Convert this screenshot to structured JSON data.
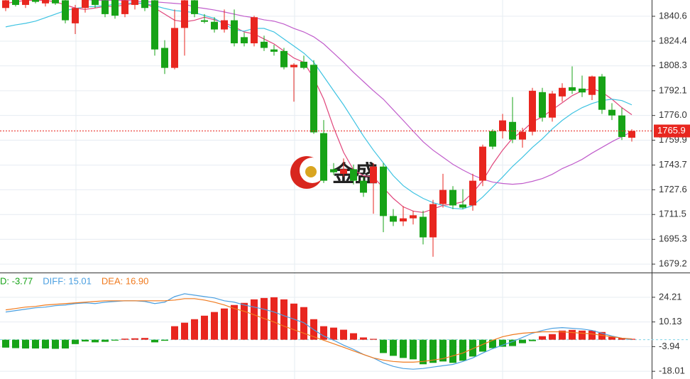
{
  "chart_data": [
    {
      "type": "candlestick",
      "watermark": "金盛",
      "ylim": [
        1673.7,
        1851.2
      ],
      "yticks": [
        1840.6,
        1824.4,
        1808.3,
        1792.1,
        {
          "value": 1776,
          "label": "1776.0"
        },
        1759.9,
        1743.7,
        1727.6,
        1711.5,
        1695.3,
        1679.2
      ],
      "grid": true,
      "up_color": "#e8261f",
      "down_color": "#17a317",
      "last_price": 1765.9,
      "open": [
        1846,
        1852,
        1848,
        1853,
        1849,
        1852,
        1851,
        1836,
        1846,
        1852,
        1851,
        1852,
        1842,
        1848,
        1852,
        1851,
        1820,
        1807,
        1833,
        1851,
        1838,
        1837,
        1832,
        1838,
        1827,
        1823,
        1824,
        1819,
        1818,
        1807.4,
        1811,
        1809,
        1764.5,
        1741,
        1738,
        1741,
        1733.5,
        1732,
        1742.7,
        1710.5,
        1707,
        1709,
        1710,
        1696.6,
        1718.3,
        1727.5,
        1718,
        1717.4,
        1733.5,
        1765.8,
        1765.8,
        1771.8,
        1760.3,
        1765.4,
        1791.2,
        1774.6,
        1788.4,
        1794.4,
        1793.5,
        1789.4,
        1801.4,
        1779.7,
        1776,
        1761.5
      ],
      "high": [
        1853,
        1854,
        1855,
        1856,
        1854,
        1855,
        1853,
        1848,
        1855,
        1856,
        1854,
        1855,
        1853,
        1855,
        1855,
        1853,
        1825,
        1845,
        1856,
        1854,
        1842,
        1840,
        1845,
        1845,
        1830,
        1841,
        1828,
        1822,
        1820,
        1810,
        1815,
        1812,
        1773,
        1745,
        1748,
        1744,
        1736,
        1745,
        1745,
        1715,
        1717,
        1714,
        1714,
        1721,
        1738,
        1730,
        1728,
        1738,
        1757,
        1767,
        1777,
        1788,
        1768,
        1794,
        1794,
        1792,
        1797,
        1808,
        1802,
        1802,
        1803,
        1784,
        1781,
        1767
      ],
      "low": [
        1844,
        1847,
        1846,
        1849,
        1847,
        1848,
        1836,
        1829,
        1843,
        1846,
        1840,
        1839,
        1840,
        1845,
        1844,
        1815,
        1803,
        1806,
        1815,
        1840,
        1836,
        1830,
        1830,
        1821,
        1821,
        1821,
        1818,
        1815,
        1806,
        1785,
        1806,
        1764,
        1732,
        1737,
        1736,
        1731,
        1723,
        1712,
        1700,
        1704,
        1704,
        1705,
        1692,
        1684,
        1716,
        1715,
        1715,
        1714,
        1730,
        1754,
        1761,
        1758,
        1755,
        1763,
        1772,
        1772,
        1785,
        1790,
        1788,
        1786,
        1777,
        1773,
        1760,
        1759
      ],
      "close": [
        1851,
        1848,
        1853,
        1850,
        1852,
        1849,
        1838,
        1846,
        1852,
        1848,
        1842,
        1841,
        1851,
        1852,
        1846,
        1819,
        1807,
        1833,
        1851,
        1842,
        1837,
        1832,
        1838,
        1823,
        1823,
        1840,
        1820,
        1817.5,
        1807.4,
        1809,
        1807,
        1765,
        1733.5,
        1739,
        1741,
        1733.5,
        1725.7,
        1742.7,
        1710.5,
        1706.8,
        1709,
        1711,
        1696.6,
        1718.3,
        1727.5,
        1717.4,
        1716,
        1733.5,
        1755.7,
        1755.7,
        1772.8,
        1760.3,
        1765.4,
        1792.1,
        1774.6,
        1790.3,
        1794,
        1792.1,
        1791,
        1801.4,
        1779.7,
        1776,
        1762,
        1765.9
      ],
      "lines": [
        {
          "color": "#e0457b",
          "values": [
            1849,
            1850,
            1851,
            1851,
            1851,
            1850,
            1848,
            1846,
            1845,
            1846,
            1847,
            1847,
            1848,
            1849,
            1849,
            1846,
            1842,
            1838,
            1837,
            1838,
            1840,
            1838.3,
            1836.4,
            1833.7,
            1830.4,
            1829.1,
            1825.8,
            1822.6,
            1818,
            1813.4,
            1810.6,
            1800.4,
            1786.6,
            1768.1,
            1752,
            1740.5,
            1736.8,
            1735.9,
            1728.9,
            1722,
            1716.5,
            1713.7,
            1712.8,
            1715.1,
            1717.4,
            1718.3,
            1719.7,
            1725.7,
            1733.5,
            1744.2,
            1753.4,
            1761.2,
            1765.8,
            1771.8,
            1775.1,
            1779.7,
            1784.3,
            1788.9,
            1792.1,
            1793.5,
            1791.2,
            1786.6,
            1781.1,
            1776.5
          ]
        },
        {
          "color": "#3ec3e2",
          "values": [
            1833.7,
            1835,
            1836,
            1837.4,
            1839.7,
            1842,
            1844.3,
            1845.7,
            1846.6,
            1847,
            1847.5,
            1848.4,
            1848.9,
            1849.4,
            1848.9,
            1847.5,
            1845.7,
            1844.3,
            1843.8,
            1842.9,
            1841.1,
            1839.2,
            1835.5,
            1831.8,
            1830.9,
            1832.7,
            1832.7,
            1830.4,
            1825.8,
            1821.2,
            1816.6,
            1810.6,
            1801.4,
            1792.1,
            1782.9,
            1772.8,
            1762.6,
            1753.4,
            1745.1,
            1736.8,
            1730.3,
            1725.7,
            1722,
            1719.2,
            1717.4,
            1715.5,
            1715.1,
            1717.4,
            1722.9,
            1729.4,
            1735.9,
            1742.8,
            1748.8,
            1755.2,
            1760.8,
            1767.2,
            1772.8,
            1777.4,
            1781.1,
            1783.8,
            1785.7,
            1786.6,
            1785.7,
            1782.9
          ]
        },
        {
          "color": "#c05ccb",
          "values": [
            1853,
            1853,
            1853,
            1852.5,
            1852,
            1852,
            1852,
            1851.5,
            1851.5,
            1851,
            1851,
            1851,
            1851,
            1850.5,
            1850,
            1850,
            1849.5,
            1849,
            1848.5,
            1846.6,
            1845.7,
            1844.7,
            1843.4,
            1842,
            1840.6,
            1839.7,
            1838.3,
            1837.4,
            1835.5,
            1832.7,
            1830.4,
            1827.2,
            1822.6,
            1816.6,
            1810.6,
            1804.1,
            1798.1,
            1792.1,
            1786.6,
            1779.7,
            1772.8,
            1765.8,
            1758.9,
            1753.4,
            1748.8,
            1744.2,
            1740.5,
            1737.2,
            1734.5,
            1732.6,
            1731.7,
            1731.2,
            1731.7,
            1733.1,
            1734.9,
            1737.7,
            1741.4,
            1744.2,
            1747.4,
            1751.5,
            1755.2,
            1758.9,
            1762.2,
            1765.4
          ]
        }
      ]
    },
    {
      "type": "macd",
      "ylim": [
        -22.4,
        37.9
      ],
      "yticks": [
        24.21,
        10.13,
        -3.94,
        -18.01
      ],
      "grid": true,
      "up_color": "#e8261f",
      "down_color": "#17a317",
      "readout": [
        "D: -3.77",
        "DIFF: 15.01",
        "DEA: 16.90"
      ],
      "readout_colors": [
        "#17a317",
        "#4a9fe0",
        "#f07a1e"
      ],
      "histogram": [
        -4.5,
        -4.8,
        -5,
        -5,
        -5,
        -5.2,
        -5,
        -2.5,
        -1,
        -1.5,
        -1.2,
        -0.5,
        0.6,
        0.8,
        1,
        -1.5,
        -0.6,
        7.7,
        9.7,
        11.7,
        13.7,
        15.8,
        17.8,
        19.8,
        21,
        23,
        23.8,
        24.2,
        23,
        20.6,
        18.6,
        11.7,
        7.7,
        6.9,
        5.7,
        3.7,
        1.3,
        0.5,
        -7.6,
        -9.2,
        -10.4,
        -11.2,
        -14,
        -13.2,
        -12.4,
        -13.2,
        -12,
        -9.6,
        -6.8,
        -4.8,
        -4,
        -3.6,
        -2,
        -0.8,
        2,
        3.2,
        5.2,
        5.6,
        5.2,
        5.2,
        4.4,
        1.6,
        1,
        0.5
      ],
      "series": [
        {
          "name": "DIFF",
          "color": "#4a9fe0",
          "values": [
            15.8,
            16.6,
            17.4,
            18.2,
            18.6,
            19.4,
            19.8,
            20.6,
            21,
            20.6,
            21.4,
            21.8,
            22.2,
            22.2,
            21.8,
            20.6,
            21.4,
            24.6,
            26.2,
            25.4,
            24.6,
            23.8,
            22.2,
            21.4,
            19.8,
            18.6,
            17.4,
            15.8,
            13.7,
            11.7,
            9.7,
            5.7,
            2.1,
            -0.3,
            -3.1,
            -5.5,
            -8.4,
            -10.4,
            -13.2,
            -15.2,
            -16.4,
            -16.8,
            -16.4,
            -15.6,
            -14.8,
            -14.1,
            -12.4,
            -10.4,
            -7.6,
            -5.1,
            -3.1,
            -1.1,
            1.3,
            3.7,
            5.3,
            6.5,
            6.9,
            6.5,
            6.1,
            5.3,
            3.7,
            2.1,
            0.9,
            0.1
          ]
        },
        {
          "name": "DEA",
          "color": "#f07a1e",
          "values": [
            17,
            17.8,
            18.6,
            19,
            19.8,
            20.2,
            20.6,
            21,
            21.4,
            21.8,
            22.2,
            22.2,
            22.2,
            22.2,
            22.2,
            22.2,
            22.2,
            22.6,
            23.4,
            23.4,
            22.6,
            21.4,
            19.8,
            17.8,
            16.2,
            14.2,
            12.1,
            10.1,
            7.7,
            5.7,
            3.7,
            1.7,
            -0.3,
            -2.3,
            -4.3,
            -6.4,
            -8.4,
            -10.4,
            -11.6,
            -12.4,
            -12.8,
            -12.8,
            -12.4,
            -11.6,
            -10.8,
            -9.2,
            -7.6,
            -5.1,
            -2.7,
            -0.3,
            1.7,
            2.9,
            3.7,
            4.1,
            4.5,
            4.5,
            4.5,
            4.1,
            3.7,
            3.3,
            2.5,
            1.7,
            0.9,
            0.5
          ]
        }
      ]
    }
  ]
}
